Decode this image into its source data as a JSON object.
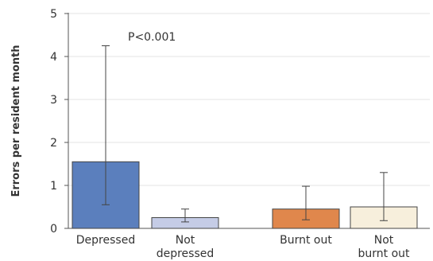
{
  "chart_data": {
    "type": "bar",
    "ylabel": "Errors per resident month",
    "ylim": [
      0,
      5
    ],
    "yticks": [
      0,
      1,
      2,
      3,
      4,
      5
    ],
    "grid": true,
    "annotation": "P<0.001",
    "bars": [
      {
        "label_lines": [
          "Depressed"
        ],
        "value": 1.55,
        "err_low": 0.55,
        "err_high": 4.25,
        "color": "#5b7fbd"
      },
      {
        "label_lines": [
          "Not",
          "depressed"
        ],
        "value": 0.25,
        "err_low": 0.15,
        "err_high": 0.45,
        "color": "#c5cce6"
      },
      {
        "label_lines": [
          "Burnt out"
        ],
        "value": 0.45,
        "err_low": 0.2,
        "err_high": 0.98,
        "color": "#e0874c"
      },
      {
        "label_lines": [
          "Not",
          "burnt out"
        ],
        "value": 0.5,
        "err_low": 0.18,
        "err_high": 1.3,
        "color": "#f7efdc"
      }
    ]
  }
}
